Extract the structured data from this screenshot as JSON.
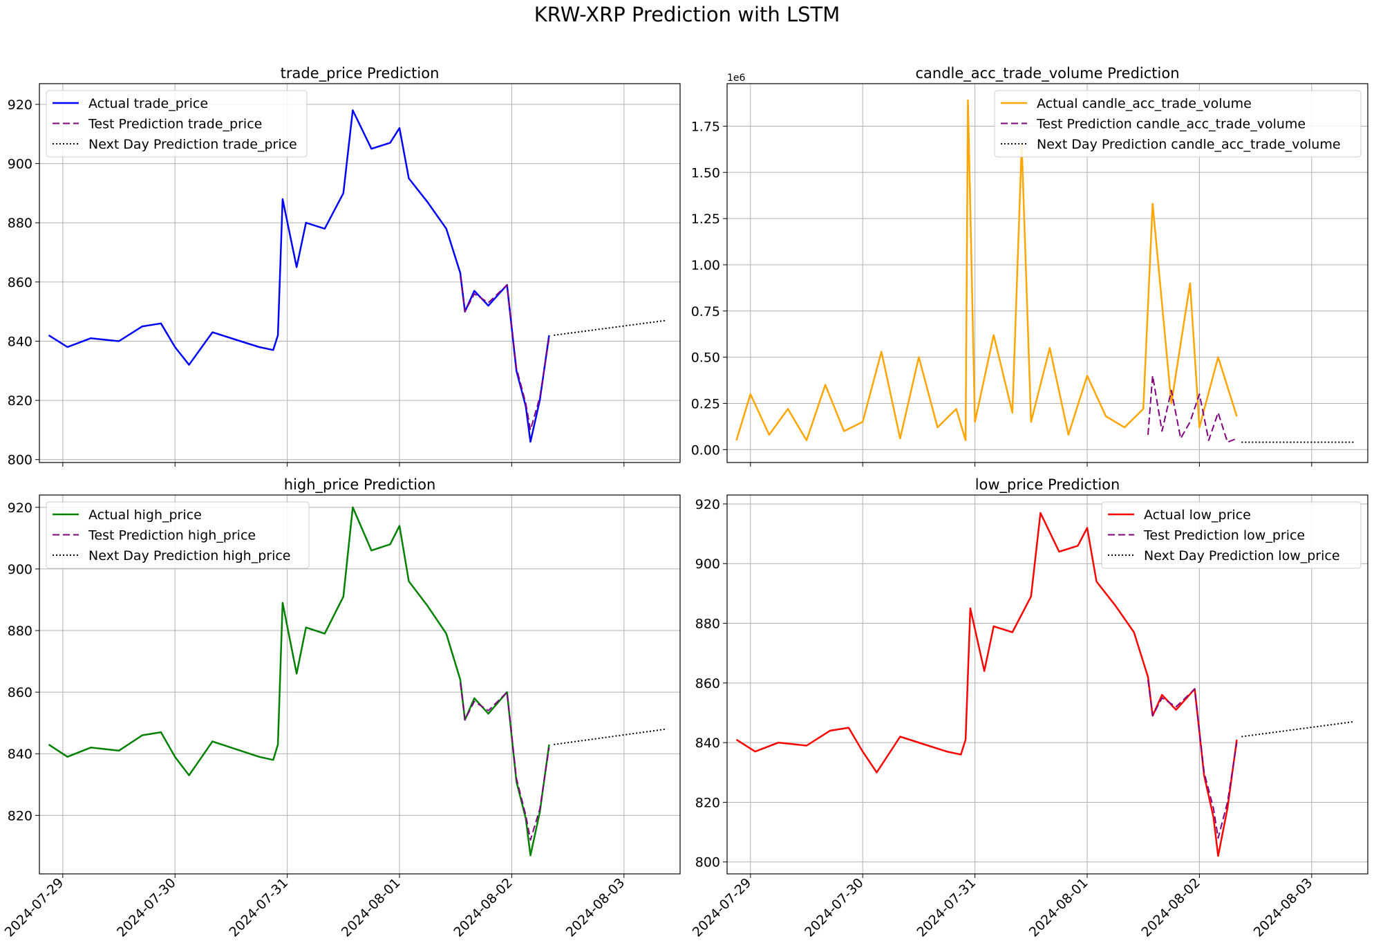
{
  "figure": {
    "title": "KRW-XRP Prediction with LSTM"
  },
  "x_ticks": [
    "2024-07-29",
    "2024-07-30",
    "2024-07-31",
    "2024-08-01",
    "2024-08-02",
    "2024-08-03"
  ],
  "chart_data": [
    {
      "type": "line",
      "title": "trade_price Prediction",
      "x_range": [
        "2024-07-28 19:00",
        "2024-08-03 12:00"
      ],
      "ylim": [
        799,
        927
      ],
      "yticks": [
        "800",
        "820",
        "840",
        "860",
        "880",
        "900",
        "920"
      ],
      "ytick_values": [
        800,
        820,
        840,
        860,
        880,
        900,
        920
      ],
      "offset_label": "",
      "grid": true,
      "legend_position": "upper left",
      "series": [
        {
          "name": "Actual trade_price",
          "color": "#0000ff",
          "style": "solid",
          "role": "actual",
          "x": [
            "2024-07-28 21:00",
            "2024-07-29 01:00",
            "2024-07-29 06:00",
            "2024-07-29 12:00",
            "2024-07-29 17:00",
            "2024-07-29 21:00",
            "2024-07-30 00:00",
            "2024-07-30 03:00",
            "2024-07-30 08:00",
            "2024-07-30 14:00",
            "2024-07-30 18:00",
            "2024-07-30 21:00",
            "2024-07-30 22:00",
            "2024-07-30 23:00",
            "2024-07-31 02:00",
            "2024-07-31 04:00",
            "2024-07-31 08:00",
            "2024-07-31 12:00",
            "2024-07-31 14:00",
            "2024-07-31 18:00",
            "2024-07-31 22:00",
            "2024-08-01 00:00",
            "2024-08-01 02:00",
            "2024-08-01 06:00",
            "2024-08-01 10:00",
            "2024-08-01 13:00",
            "2024-08-01 14:00",
            "2024-08-01 16:00",
            "2024-08-01 19:00",
            "2024-08-01 23:00",
            "2024-08-02 01:00",
            "2024-08-02 03:00",
            "2024-08-02 04:00",
            "2024-08-02 06:00",
            "2024-08-02 08:00"
          ],
          "y": [
            842,
            838,
            841,
            840,
            845,
            846,
            838,
            832,
            843,
            840,
            838,
            837,
            842,
            888,
            865,
            880,
            878,
            890,
            918,
            905,
            907,
            912,
            895,
            887,
            878,
            863,
            850,
            857,
            852,
            859,
            830,
            818,
            806,
            820,
            842
          ]
        },
        {
          "name": "Test Prediction trade_price",
          "color": "#800080",
          "style": "dashed",
          "role": "test",
          "x": [
            "2024-08-01 13:00",
            "2024-08-01 14:00",
            "2024-08-01 16:00",
            "2024-08-01 19:00",
            "2024-08-01 23:00",
            "2024-08-02 01:00",
            "2024-08-02 03:00",
            "2024-08-02 04:00",
            "2024-08-02 06:00",
            "2024-08-02 08:00"
          ],
          "y": [
            862,
            850,
            856,
            853,
            859,
            831,
            819,
            810,
            821,
            841
          ]
        },
        {
          "name": "Next Day Prediction trade_price",
          "color": "#000000",
          "style": "dotted",
          "role": "next",
          "x": [
            "2024-08-02 09:00",
            "2024-08-03 09:00"
          ],
          "y": [
            842,
            847
          ]
        }
      ]
    },
    {
      "type": "line",
      "title": "candle_acc_trade_volume Prediction",
      "x_range": [
        "2024-07-28 19:00",
        "2024-08-03 12:00"
      ],
      "ylim": [
        -0.07,
        1.98
      ],
      "yticks": [
        "0.00",
        "0.25",
        "0.50",
        "0.75",
        "1.00",
        "1.25",
        "1.50",
        "1.75"
      ],
      "ytick_values": [
        0,
        0.25,
        0.5,
        0.75,
        1.0,
        1.25,
        1.5,
        1.75
      ],
      "offset_label": "1e6",
      "grid": true,
      "legend_position": "upper right",
      "series": [
        {
          "name": "Actual candle_acc_trade_volume",
          "color": "#ffa500",
          "style": "solid",
          "role": "actual",
          "x": [
            "2024-07-28 21:00",
            "2024-07-29 00:00",
            "2024-07-29 04:00",
            "2024-07-29 08:00",
            "2024-07-29 12:00",
            "2024-07-29 16:00",
            "2024-07-29 20:00",
            "2024-07-30 00:00",
            "2024-07-30 04:00",
            "2024-07-30 08:00",
            "2024-07-30 12:00",
            "2024-07-30 16:00",
            "2024-07-30 20:00",
            "2024-07-30 22:00",
            "2024-07-30 22:30",
            "2024-07-31 00:00",
            "2024-07-31 04:00",
            "2024-07-31 08:00",
            "2024-07-31 10:00",
            "2024-07-31 12:00",
            "2024-07-31 16:00",
            "2024-07-31 20:00",
            "2024-08-01 00:00",
            "2024-08-01 04:00",
            "2024-08-01 08:00",
            "2024-08-01 12:00",
            "2024-08-01 14:00",
            "2024-08-01 18:00",
            "2024-08-01 22:00",
            "2024-08-02 00:00",
            "2024-08-02 04:00",
            "2024-08-02 08:00"
          ],
          "y": [
            0.05,
            0.3,
            0.08,
            0.22,
            0.05,
            0.35,
            0.1,
            0.15,
            0.53,
            0.06,
            0.5,
            0.12,
            0.22,
            0.05,
            1.89,
            0.15,
            0.62,
            0.2,
            1.65,
            0.15,
            0.55,
            0.08,
            0.4,
            0.18,
            0.12,
            0.22,
            1.33,
            0.25,
            0.9,
            0.12,
            0.5,
            0.18
          ]
        },
        {
          "name": "Test Prediction candle_acc_trade_volume",
          "color": "#800080",
          "style": "dashed",
          "role": "test",
          "x": [
            "2024-08-01 13:00",
            "2024-08-01 14:00",
            "2024-08-01 16:00",
            "2024-08-01 18:00",
            "2024-08-01 20:00",
            "2024-08-01 22:00",
            "2024-08-02 00:00",
            "2024-08-02 02:00",
            "2024-08-02 04:00",
            "2024-08-02 06:00",
            "2024-08-02 08:00"
          ],
          "y": [
            0.08,
            0.4,
            0.1,
            0.32,
            0.06,
            0.15,
            0.3,
            0.05,
            0.2,
            0.04,
            0.06
          ]
        },
        {
          "name": "Next Day Prediction candle_acc_trade_volume",
          "color": "#000000",
          "style": "dotted",
          "role": "next",
          "x": [
            "2024-08-02 09:00",
            "2024-08-03 09:00"
          ],
          "y": [
            0.04,
            0.04
          ]
        }
      ]
    },
    {
      "type": "line",
      "title": "high_price Prediction",
      "x_range": [
        "2024-07-28 19:00",
        "2024-08-03 12:00"
      ],
      "ylim": [
        801,
        924
      ],
      "yticks": [
        "820",
        "840",
        "860",
        "880",
        "900",
        "920"
      ],
      "ytick_values": [
        820,
        840,
        860,
        880,
        900,
        920
      ],
      "offset_label": "",
      "grid": true,
      "legend_position": "upper left",
      "series": [
        {
          "name": "Actual high_price",
          "color": "#008000",
          "style": "solid",
          "role": "actual",
          "x": [
            "2024-07-28 21:00",
            "2024-07-29 01:00",
            "2024-07-29 06:00",
            "2024-07-29 12:00",
            "2024-07-29 17:00",
            "2024-07-29 21:00",
            "2024-07-30 00:00",
            "2024-07-30 03:00",
            "2024-07-30 08:00",
            "2024-07-30 14:00",
            "2024-07-30 18:00",
            "2024-07-30 21:00",
            "2024-07-30 22:00",
            "2024-07-30 23:00",
            "2024-07-31 02:00",
            "2024-07-31 04:00",
            "2024-07-31 08:00",
            "2024-07-31 12:00",
            "2024-07-31 14:00",
            "2024-07-31 18:00",
            "2024-07-31 22:00",
            "2024-08-01 00:00",
            "2024-08-01 02:00",
            "2024-08-01 06:00",
            "2024-08-01 10:00",
            "2024-08-01 13:00",
            "2024-08-01 14:00",
            "2024-08-01 16:00",
            "2024-08-01 19:00",
            "2024-08-01 23:00",
            "2024-08-02 01:00",
            "2024-08-02 03:00",
            "2024-08-02 04:00",
            "2024-08-02 06:00",
            "2024-08-02 08:00"
          ],
          "y": [
            843,
            839,
            842,
            841,
            846,
            847,
            839,
            833,
            844,
            841,
            839,
            838,
            843,
            889,
            866,
            881,
            879,
            891,
            920,
            906,
            908,
            914,
            896,
            888,
            879,
            864,
            851,
            858,
            853,
            860,
            831,
            819,
            807,
            821,
            843
          ]
        },
        {
          "name": "Test Prediction high_price",
          "color": "#800080",
          "style": "dashed",
          "role": "test",
          "x": [
            "2024-08-01 13:00",
            "2024-08-01 14:00",
            "2024-08-01 16:00",
            "2024-08-01 19:00",
            "2024-08-01 23:00",
            "2024-08-02 01:00",
            "2024-08-02 03:00",
            "2024-08-02 04:00",
            "2024-08-02 06:00",
            "2024-08-02 08:00"
          ],
          "y": [
            863,
            851,
            857,
            854,
            860,
            832,
            820,
            812,
            822,
            842
          ]
        },
        {
          "name": "Next Day Prediction high_price",
          "color": "#000000",
          "style": "dotted",
          "role": "next",
          "x": [
            "2024-08-02 09:00",
            "2024-08-03 09:00"
          ],
          "y": [
            843,
            848
          ]
        }
      ]
    },
    {
      "type": "line",
      "title": "low_price Prediction",
      "x_range": [
        "2024-07-28 19:00",
        "2024-08-03 12:00"
      ],
      "ylim": [
        796,
        923
      ],
      "yticks": [
        "800",
        "820",
        "840",
        "860",
        "880",
        "900",
        "920"
      ],
      "ytick_values": [
        800,
        820,
        840,
        860,
        880,
        900,
        920
      ],
      "offset_label": "",
      "grid": true,
      "legend_position": "upper right",
      "series": [
        {
          "name": "Actual low_price",
          "color": "#ff0000",
          "style": "solid",
          "role": "actual",
          "x": [
            "2024-07-28 21:00",
            "2024-07-29 01:00",
            "2024-07-29 06:00",
            "2024-07-29 12:00",
            "2024-07-29 17:00",
            "2024-07-29 21:00",
            "2024-07-30 00:00",
            "2024-07-30 03:00",
            "2024-07-30 08:00",
            "2024-07-30 14:00",
            "2024-07-30 18:00",
            "2024-07-30 21:00",
            "2024-07-30 22:00",
            "2024-07-30 23:00",
            "2024-07-31 02:00",
            "2024-07-31 04:00",
            "2024-07-31 08:00",
            "2024-07-31 12:00",
            "2024-07-31 14:00",
            "2024-07-31 18:00",
            "2024-07-31 22:00",
            "2024-08-01 00:00",
            "2024-08-01 02:00",
            "2024-08-01 06:00",
            "2024-08-01 10:00",
            "2024-08-01 13:00",
            "2024-08-01 14:00",
            "2024-08-01 16:00",
            "2024-08-01 19:00",
            "2024-08-01 23:00",
            "2024-08-02 01:00",
            "2024-08-02 03:00",
            "2024-08-02 04:00",
            "2024-08-02 06:00",
            "2024-08-02 08:00"
          ],
          "y": [
            841,
            837,
            840,
            839,
            844,
            845,
            837,
            830,
            842,
            839,
            837,
            836,
            841,
            885,
            864,
            879,
            877,
            889,
            917,
            904,
            906,
            912,
            894,
            886,
            877,
            862,
            849,
            856,
            851,
            858,
            829,
            815,
            802,
            818,
            841
          ]
        },
        {
          "name": "Test Prediction low_price",
          "color": "#800080",
          "style": "dashed",
          "role": "test",
          "x": [
            "2024-08-01 13:00",
            "2024-08-01 14:00",
            "2024-08-01 16:00",
            "2024-08-01 19:00",
            "2024-08-01 23:00",
            "2024-08-02 01:00",
            "2024-08-02 03:00",
            "2024-08-02 04:00",
            "2024-08-02 06:00",
            "2024-08-02 08:00"
          ],
          "y": [
            861,
            849,
            855,
            852,
            858,
            830,
            818,
            808,
            820,
            840
          ]
        },
        {
          "name": "Next Day Prediction low_price",
          "color": "#000000",
          "style": "dotted",
          "role": "next",
          "x": [
            "2024-08-02 09:00",
            "2024-08-03 09:00"
          ],
          "y": [
            842,
            847
          ]
        }
      ]
    }
  ]
}
